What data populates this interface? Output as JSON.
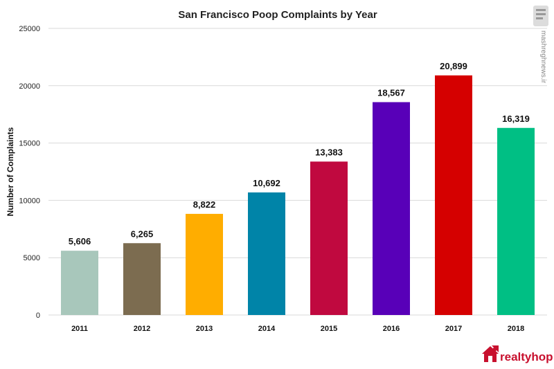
{
  "chart_data": {
    "type": "bar",
    "title": "San Francisco Poop Complaints by Year",
    "xlabel": "",
    "ylabel": "Number of Complaints",
    "categories": [
      "2011",
      "2012",
      "2013",
      "2014",
      "2015",
      "2016",
      "2017",
      "2018"
    ],
    "values": [
      5606,
      6265,
      8822,
      10692,
      13383,
      18567,
      20899,
      16319
    ],
    "data_labels": [
      "5,606",
      "6,265",
      "8,822",
      "10,692",
      "13,383",
      "18,567",
      "20,899",
      "16,319"
    ],
    "bar_colors": [
      "#a8c7bb",
      "#7c6c50",
      "#ffad00",
      "#0084a8",
      "#c0093f",
      "#5800b8",
      "#d50000",
      "#00bf84"
    ],
    "ylim": [
      0,
      25000
    ],
    "y_ticks": [
      0,
      5000,
      10000,
      15000,
      20000,
      25000
    ],
    "y_tick_labels": [
      "0",
      "5000",
      "10000",
      "15000",
      "20000",
      "25000"
    ],
    "grid": true,
    "legend": "none"
  },
  "branding": {
    "logo_text": "realtyhop",
    "logo_color": "#c8102e",
    "logo_icon": "house-icon",
    "watermark": "mashreghnews.ir",
    "watermark_icon": "news-emblem-icon"
  }
}
